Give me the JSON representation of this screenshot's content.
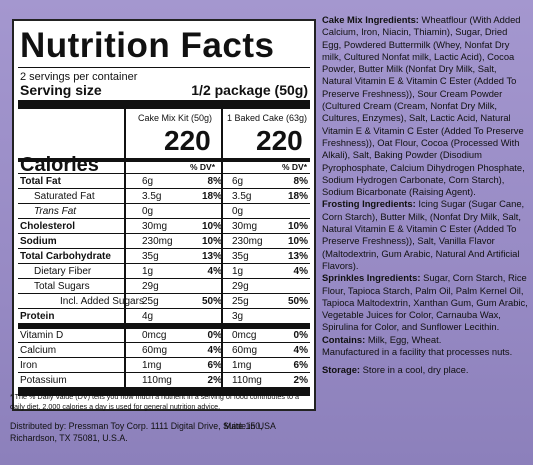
{
  "facts": {
    "title": "Nutrition Facts",
    "servings": "2 servings per container",
    "serving_size_label": "Serving size",
    "serving_size_value": "1/2 package (50g)",
    "col_a_header": "Cake Mix Kit (50g)",
    "col_b_header": "1 Baked Cake (63g)",
    "calories_label": "Calories",
    "calories_a": "220",
    "calories_b": "220",
    "dv_header": "% DV*",
    "rows": [
      {
        "label": "Total Fat",
        "a": "6g",
        "ap": "8%",
        "b": "6g",
        "bp": "8%"
      },
      {
        "label": "Saturated Fat",
        "a": "3.5g",
        "ap": "18%",
        "b": "3.5g",
        "bp": "18%"
      },
      {
        "label": "Trans Fat",
        "a": "0g",
        "ap": "",
        "b": "0g",
        "bp": ""
      },
      {
        "label": "Cholesterol",
        "a": "30mg",
        "ap": "10%",
        "b": "30mg",
        "bp": "10%"
      },
      {
        "label": "Sodium",
        "a": "230mg",
        "ap": "10%",
        "b": "230mg",
        "bp": "10%"
      },
      {
        "label": "Total Carbohydrate",
        "a": "35g",
        "ap": "13%",
        "b": "35g",
        "bp": "13%"
      },
      {
        "label": "Dietary Fiber",
        "a": "1g",
        "ap": "4%",
        "b": "1g",
        "bp": "4%"
      },
      {
        "label": "Total Sugars",
        "a": "29g",
        "ap": "",
        "b": "29g",
        "bp": ""
      },
      {
        "label": "Incl. Added Sugars",
        "a": "25g",
        "ap": "50%",
        "b": "25g",
        "bp": "50%"
      },
      {
        "label": "Protein",
        "a": "4g",
        "ap": "",
        "b": "3g",
        "bp": ""
      },
      {
        "label": "Vitamin D",
        "a": "0mcg",
        "ap": "0%",
        "b": "0mcg",
        "bp": "0%"
      },
      {
        "label": "Calcium",
        "a": "60mg",
        "ap": "4%",
        "b": "60mg",
        "bp": "4%"
      },
      {
        "label": "Iron",
        "a": "1mg",
        "ap": "6%",
        "b": "1mg",
        "bp": "6%"
      },
      {
        "label": "Potassium",
        "a": "110mg",
        "ap": "2%",
        "b": "110mg",
        "bp": "2%"
      }
    ],
    "footnote": "* The % Daily Value (DV) tells you how much a nutrient in a serving of food contributes to a daily diet. 2,000 calories a day is used for general nutrition advice."
  },
  "distributor": "Distributed by: Pressman Toy Corp. 1111 Digital Drive, Suite 150, Richardson, TX 75081, U.S.A.",
  "made_in": "Made in USA",
  "ingredients": {
    "cake_mix_heading": "Cake Mix Ingredients:",
    "cake_mix_text": "Wheatflour (With Added Calcium, Iron, Niacin, Thiamin), Sugar, Dried Egg, Powdered Buttermilk (Whey, Nonfat Dry milk, Cultured Nonfat milk, Lactic Acid), Cocoa Powder, Butter Milk (Nonfat Dry Milk, Salt, Natural Vitamin E & Vitamin C Ester (Added To Preserve Freshness)), Sour Cream Powder (Cultured Cream (Cream, Nonfat Dry Milk, Cultures, Enzymes), Salt, Lactic Acid, Natural Vitamin E & Vitamin C Ester (Added To Preserve Freshness)), Oat Flour, Cocoa (Processed With Alkali), Salt, Baking Powder (Disodium Pyrophosphate, Calcium Dihydrogen Phosphate, Sodium Hydrogen Carbonate, Corn Starch), Sodium Bicarbonate (Raising Agent).",
    "frosting_heading": "Frosting Ingredients:",
    "frosting_text": "Icing Sugar (Sugar Cane, Corn Starch), Butter Milk, (Nonfat Dry Milk, Salt, Natural Vitamin E & Vitamin C Ester (Added To Preserve Freshness)), Salt, Vanilla Flavor (Maltodextrin, Gum Arabic, Natural And Artificial Flavors).",
    "sprinkles_heading": "Sprinkles Ingredients:",
    "sprinkles_text": "Sugar, Corn Starch, Rice Flour, Tapioca Starch, Palm Oil, Palm Kernel Oil, Tapioca Maltodextrin, Xanthan Gum, Gum Arabic, Vegetable Juices for Color, Carnauba Wax, Spirulina for Color, and Sunflower Lecithin.",
    "contains_heading": "Contains:",
    "contains_text": "Milk, Egg, Wheat.",
    "facility_text": "Manufactured in a facility that processes nuts.",
    "storage_heading": "Storage:",
    "storage_text": "Store in a cool, dry place."
  }
}
